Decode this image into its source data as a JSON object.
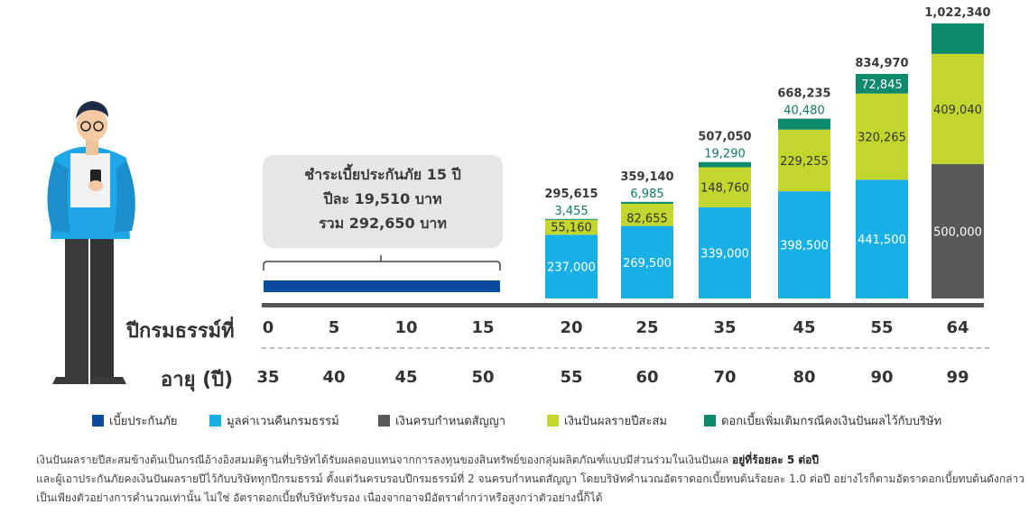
{
  "info_box": {
    "line1": "ชำระเบี้ยประกันภัย 15 ปี",
    "line2": "ปีละ 19,510 บาท",
    "line3": "รวม 292,650 บาท"
  },
  "row_labels": {
    "policy_year": "ปีกรมธรรม์ที่",
    "age": "อายุ (ปี)"
  },
  "colors": {
    "premium": "#0b4a9c",
    "cash_value": "#18aee6",
    "maturity": "#58585a",
    "dividend": "#c2d62d",
    "interest": "#0e8a6a",
    "total_text": "#3a3a3a",
    "interest_text": "#0e7a62"
  },
  "chart_data": {
    "type": "bar",
    "stacked": true,
    "x_policy_year": [
      "0",
      "5",
      "10",
      "15",
      "20",
      "25",
      "35",
      "45",
      "55",
      "64"
    ],
    "x_age": [
      "35",
      "40",
      "45",
      "50",
      "55",
      "60",
      "70",
      "80",
      "90",
      "99"
    ],
    "premium_period": {
      "from_policy_year": "0",
      "to_policy_year": "15"
    },
    "bars": [
      {
        "policy_year": "20",
        "total": "295,615",
        "segments": [
          {
            "series": "cash_value",
            "value": 237000,
            "label": "237,000"
          },
          {
            "series": "dividend",
            "value": 55160,
            "label": "55,160"
          },
          {
            "series": "interest",
            "value": 3455,
            "label": "3,455"
          }
        ]
      },
      {
        "policy_year": "25",
        "total": "359,140",
        "segments": [
          {
            "series": "cash_value",
            "value": 269500,
            "label": "269,500"
          },
          {
            "series": "dividend",
            "value": 82655,
            "label": "82,655"
          },
          {
            "series": "interest",
            "value": 6985,
            "label": "6,985"
          }
        ]
      },
      {
        "policy_year": "35",
        "total": "507,050",
        "segments": [
          {
            "series": "cash_value",
            "value": 339000,
            "label": "339,000"
          },
          {
            "series": "dividend",
            "value": 148760,
            "label": "148,760"
          },
          {
            "series": "interest",
            "value": 19290,
            "label": "19,290"
          }
        ]
      },
      {
        "policy_year": "45",
        "total": "668,235",
        "segments": [
          {
            "series": "cash_value",
            "value": 398500,
            "label": "398,500"
          },
          {
            "series": "dividend",
            "value": 229255,
            "label": "229,255"
          },
          {
            "series": "interest",
            "value": 40480,
            "label": "40,480"
          }
        ]
      },
      {
        "policy_year": "55",
        "total": "834,970",
        "segments": [
          {
            "series": "cash_value",
            "value": 441500,
            "label": "441,500"
          },
          {
            "series": "dividend",
            "value": 320265,
            "label": "320,265"
          },
          {
            "series": "interest",
            "value": 72845,
            "label": "72,845"
          }
        ]
      },
      {
        "policy_year": "64",
        "total": "1,022,340",
        "segments": [
          {
            "series": "maturity",
            "value": 500000,
            "label": "500,000"
          },
          {
            "series": "dividend",
            "value": 409040,
            "label": "409,040"
          },
          {
            "series": "interest",
            "value": 113300,
            "label": ""
          }
        ]
      }
    ],
    "legend": [
      {
        "key": "premium",
        "label": "เบี้ยประกันภัย"
      },
      {
        "key": "cash_value",
        "label": "มูลค่าเวนคืนกรมธรรม์"
      },
      {
        "key": "maturity",
        "label": "เงินครบกำหนดสัญญา"
      },
      {
        "key": "dividend",
        "label": "เงินปันผลรายปีสะสม"
      },
      {
        "key": "interest",
        "label": "ดอกเบี้ยเพิ่มเติมกรณีคงเงินปันผลไว้กับบริษัท"
      }
    ]
  },
  "note": {
    "part1": "เงินปันผลรายปีสะสมข้างต้นเป็นกรณีอ้างอิงสมมติฐานที่บริษัทได้รับผลตอบแทนจากการลงทุนของสินทรัพย์ของกลุ่มผลิตภัณฑ์แบบมีส่วนร่วมในเงินปันผล ",
    "bold": "อยู่ที่ร้อยละ 5 ต่อปี",
    "part2": "และผู้เอาประกันภัยคงเงินปันผลรายปีไว้กับบริษัททุกปีกรมธรรม์ ตั้งแต่วันครบรอบปีกรมธรรม์ที่ 2 จนครบกำหนดสัญญา โดยบริษัทคำนวณอัตราดอกเบี้ยทบต้นร้อยละ 1.0 ต่อปี อย่างไรก็ตามอัตราดอกเบี้ยทบต้นดังกล่าวเป็นเพียงตัวอย่างการคำนวณเท่านั้น ไม่ใช่ อัตราดอกเบี้ยที่บริษัทรับรอง เนื่องจากอาจมีอัตราต่ำกว่าหรือสูงกว่าตัวอย่างนี้ก็ได้"
  }
}
